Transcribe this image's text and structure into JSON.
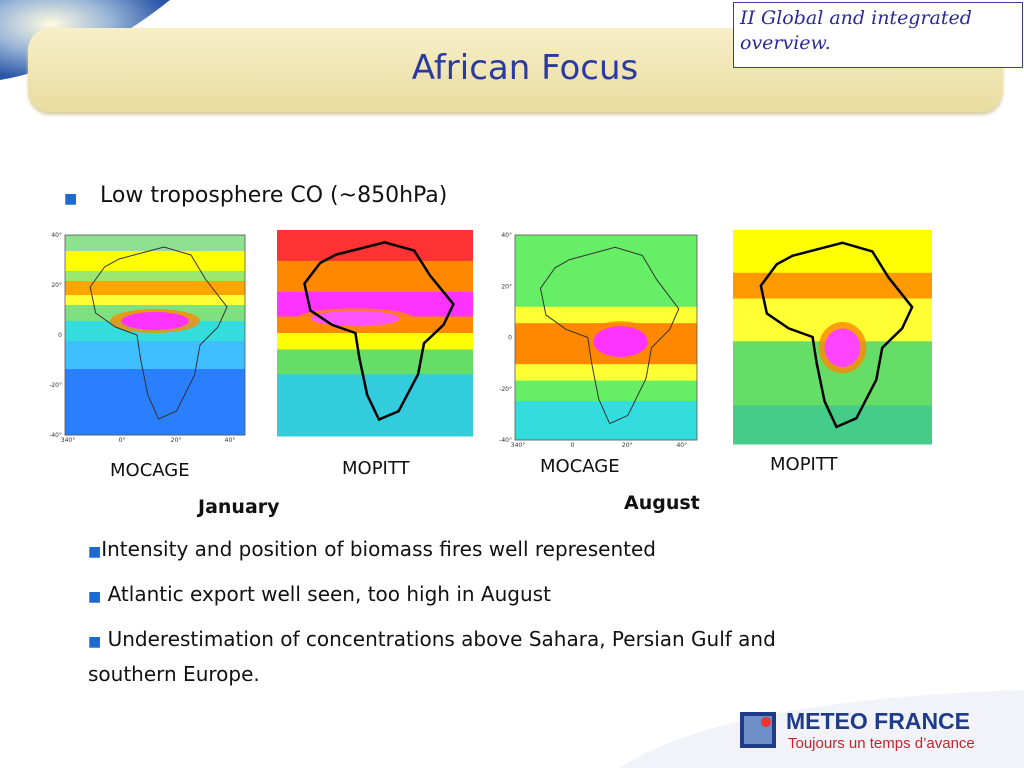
{
  "header": {
    "title": "African Focus",
    "section": "II Global and integrated overview."
  },
  "subtitle": "Low troposphere CO (~850hPa)",
  "maps": [
    {
      "label": "MOCAGE",
      "y_labels": [
        "40°",
        "20°",
        "0",
        "-20°",
        "-40°"
      ],
      "x_labels": [
        "340°",
        "0°",
        "20°",
        "40°"
      ]
    },
    {
      "label": "MOPITT"
    },
    {
      "label": "MOCAGE",
      "y_labels": [
        "40°",
        "20°",
        "0",
        "-20°",
        "-40°"
      ],
      "x_labels": [
        "340°",
        "0",
        "20°",
        "40°"
      ]
    },
    {
      "label": "MOPITT"
    }
  ],
  "months": [
    "January",
    "August"
  ],
  "points": [
    "Intensity and position of biomass fires well represented",
    "Atlantic export well seen, too high in August",
    "Underestimation of concentrations above Sahara, Persian Gulf and southern Europe."
  ],
  "logo": {
    "name": "METEO FRANCE",
    "slogan": "Toujours un temps d’avance"
  }
}
